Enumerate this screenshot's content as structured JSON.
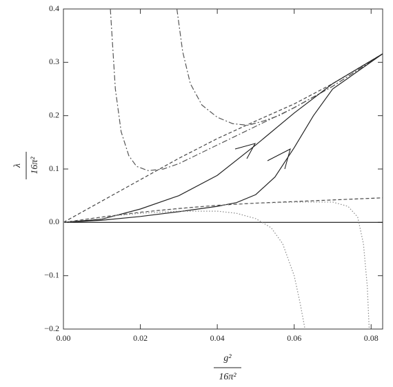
{
  "chart_data": {
    "type": "line",
    "xlabel_numerator": "g²",
    "xlabel_denominator": "16π²",
    "ylabel_numerator": "λ",
    "ylabel_denominator": "16π²",
    "xlim": [
      0,
      0.083
    ],
    "ylim": [
      -0.2,
      0.4
    ],
    "xticks": [
      {
        "value": 0,
        "label": "0.00"
      },
      {
        "value": 0.02,
        "label": "0.02"
      },
      {
        "value": 0.04,
        "label": "0.04"
      },
      {
        "value": 0.06,
        "label": "0.06"
      },
      {
        "value": 0.08,
        "label": "0.08"
      }
    ],
    "yticks": [
      {
        "value": -0.2,
        "label": "−0.2"
      },
      {
        "value": -0.1,
        "label": "−0.1"
      },
      {
        "value": 0,
        "label": "0.0"
      },
      0.1,
      0.2,
      0.3,
      0.4
    ],
    "series": [
      {
        "color": "#555",
        "dash": "dashdot",
        "x": [
          0.0122,
          0.0135,
          0.015,
          0.017,
          0.019,
          0.022,
          0.026,
          0.03,
          0.04,
          0.05,
          0.06,
          0.07,
          0.083
        ],
        "values": [
          0.4,
          0.25,
          0.17,
          0.125,
          0.105,
          0.097,
          0.1,
          0.11,
          0.145,
          0.18,
          0.215,
          0.255,
          0.316
        ]
      },
      {
        "color": "#555",
        "dash": "dashdot",
        "x": [
          0.0295,
          0.031,
          0.033,
          0.036,
          0.04,
          0.044,
          0.048,
          0.052,
          0.056,
          0.06,
          0.07,
          0.083
        ],
        "values": [
          0.4,
          0.32,
          0.26,
          0.22,
          0.197,
          0.185,
          0.182,
          0.19,
          0.2,
          0.215,
          0.255,
          0.316
        ]
      },
      {
        "color": "#444",
        "dash": "dashed",
        "x": [
          0,
          0.01,
          0.02,
          0.03,
          0.04,
          0.05,
          0.06,
          0.07,
          0.083
        ],
        "values": [
          0,
          0.04,
          0.08,
          0.12,
          0.157,
          0.19,
          0.222,
          0.26,
          0.316
        ]
      },
      {
        "color": "#222",
        "dash": "solid",
        "x": [
          0,
          0.01,
          0.02,
          0.03,
          0.04,
          0.05,
          0.06,
          0.07,
          0.083
        ],
        "values": [
          0,
          0.006,
          0.025,
          0.05,
          0.088,
          0.145,
          0.205,
          0.26,
          0.316
        ]
      },
      {
        "color": "#222",
        "dash": "solid",
        "x": [
          0,
          0.01,
          0.02,
          0.03,
          0.04,
          0.045,
          0.05,
          0.055,
          0.06,
          0.065,
          0.07,
          0.083
        ],
        "values": [
          0,
          0.004,
          0.011,
          0.02,
          0.03,
          0.037,
          0.052,
          0.085,
          0.14,
          0.2,
          0.25,
          0.316
        ]
      },
      {
        "color": "#444",
        "dash": "dashed",
        "x": [
          0,
          0.01,
          0.02,
          0.03,
          0.04,
          0.05,
          0.06,
          0.07,
          0.083
        ],
        "values": [
          0,
          0.01,
          0.019,
          0.026,
          0.032,
          0.036,
          0.039,
          0.042,
          0.046
        ]
      },
      {
        "color": "#888",
        "dash": "dotted",
        "x": [
          0,
          0.01,
          0.02,
          0.03,
          0.04,
          0.045,
          0.05,
          0.054,
          0.057,
          0.06,
          0.0615,
          0.0628
        ],
        "values": [
          0,
          0.01,
          0.017,
          0.021,
          0.021,
          0.017,
          0.007,
          -0.01,
          -0.04,
          -0.1,
          -0.15,
          -0.2
        ]
      },
      {
        "color": "#888",
        "dash": "dotted",
        "x": [
          0,
          0.02,
          0.04,
          0.05,
          0.06,
          0.07,
          0.074,
          0.0765,
          0.078,
          0.079,
          0.0795
        ],
        "values": [
          0,
          0.019,
          0.032,
          0.036,
          0.038,
          0.038,
          0.03,
          0.01,
          -0.04,
          -0.12,
          -0.2
        ]
      }
    ]
  }
}
